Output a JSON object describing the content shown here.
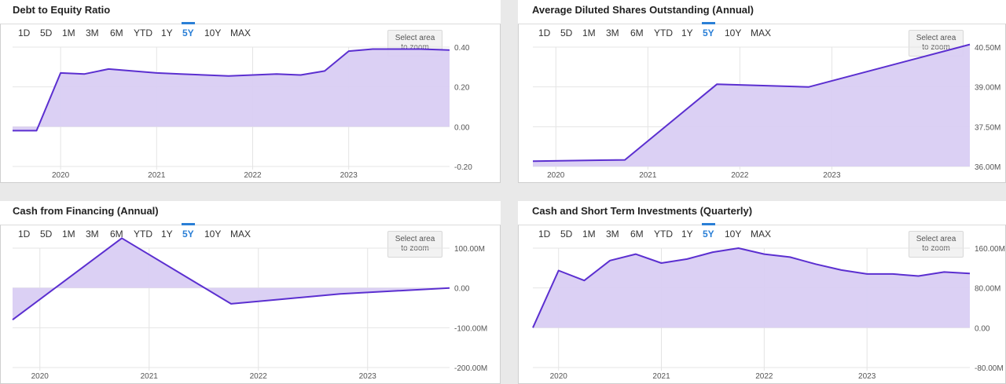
{
  "range_buttons": [
    "1D",
    "5D",
    "1M",
    "3M",
    "6M",
    "YTD",
    "1Y",
    "5Y",
    "10Y",
    "MAX"
  ],
  "active_range": "5Y",
  "zoom_label_line1": "Select area",
  "zoom_label_line2": "to zoom",
  "colors": {
    "line": "#5b2fd0",
    "fill": "#d9cef3",
    "active": "#2a7fd6",
    "grid": "#e4e4e4"
  },
  "chart_data": [
    {
      "title": "Debt to Equity Ratio",
      "type": "area",
      "x_ticks": [
        "2020",
        "2021",
        "2022",
        "2023"
      ],
      "y_ticks": [
        "0.40",
        "0.20",
        "0.00",
        "-0.20"
      ],
      "ylim": [
        -0.2,
        0.4
      ],
      "xlim": [
        2019.5,
        2024.05
      ],
      "x": [
        2019.5,
        2019.75,
        2020.0,
        2020.25,
        2020.5,
        2020.75,
        2021.0,
        2021.25,
        2021.5,
        2021.75,
        2022.0,
        2022.25,
        2022.5,
        2022.75,
        2023.0,
        2023.25,
        2023.5,
        2023.75,
        2024.05
      ],
      "values": [
        -0.02,
        -0.02,
        0.27,
        0.265,
        0.29,
        0.28,
        0.27,
        0.265,
        0.26,
        0.255,
        0.26,
        0.265,
        0.26,
        0.28,
        0.38,
        0.39,
        0.39,
        0.39,
        0.385
      ]
    },
    {
      "title": "Average Diluted Shares Outstanding (Annual)",
      "type": "area",
      "x_ticks": [
        "2020",
        "2021",
        "2022",
        "2023"
      ],
      "y_ticks": [
        "40.50M",
        "39.00M",
        "37.50M",
        "36.00M"
      ],
      "ylim": [
        36.0,
        40.5
      ],
      "xlim": [
        2019.75,
        2024.5
      ],
      "x": [
        2019.75,
        2020.75,
        2021.75,
        2022.75,
        2024.5
      ],
      "values": [
        36.2,
        36.25,
        39.1,
        39.0,
        40.6
      ]
    },
    {
      "title": "Cash from Financing (Annual)",
      "type": "area",
      "x_ticks": [
        "2020",
        "2021",
        "2022",
        "2023"
      ],
      "y_ticks": [
        "100.00M",
        "0.00",
        "-100.00M",
        "-200.00M"
      ],
      "ylim": [
        -200,
        100
      ],
      "xlim": [
        2019.75,
        2023.75
      ],
      "x": [
        2019.75,
        2020.75,
        2021.75,
        2022.75,
        2023.75
      ],
      "values": [
        -80,
        125,
        -40,
        -15,
        0
      ]
    },
    {
      "title": "Cash and Short Term Investments (Quarterly)",
      "type": "area",
      "x_ticks": [
        "2020",
        "2021",
        "2022",
        "2023"
      ],
      "y_ticks": [
        "160.00M",
        "80.00M",
        "0.00",
        "-80.00M"
      ],
      "ylim": [
        -80,
        160
      ],
      "xlim": [
        2019.75,
        2024.0
      ],
      "x": [
        2019.75,
        2020.0,
        2020.25,
        2020.5,
        2020.75,
        2021.0,
        2021.25,
        2021.5,
        2021.75,
        2022.0,
        2022.25,
        2022.5,
        2022.75,
        2023.0,
        2023.25,
        2023.5,
        2023.75,
        2024.0
      ],
      "values": [
        0,
        115,
        95,
        135,
        148,
        130,
        138,
        152,
        160,
        148,
        142,
        128,
        116,
        108,
        108,
        104,
        112,
        109
      ]
    }
  ]
}
